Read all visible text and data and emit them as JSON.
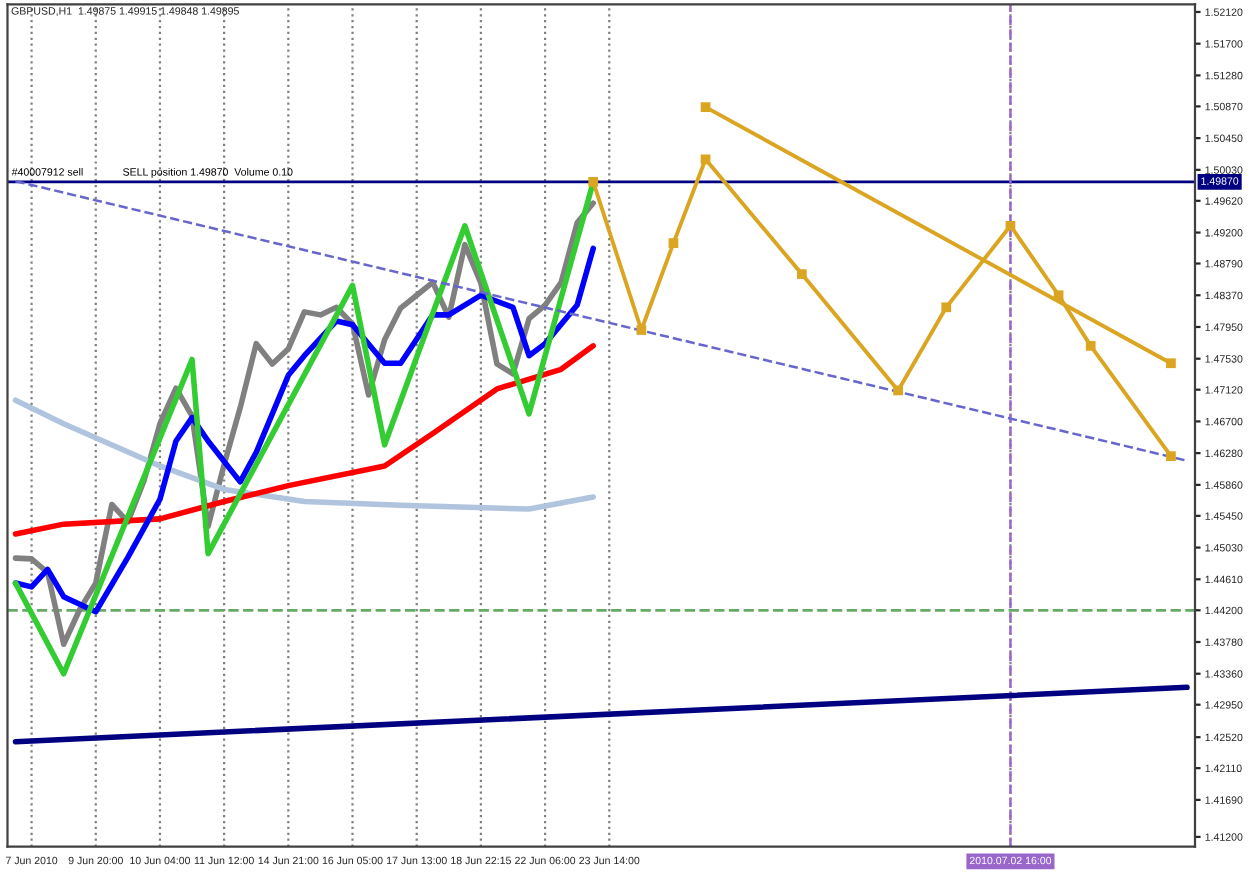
{
  "chart_data": {
    "type": "line",
    "title": "GBPUSD,H1  1.49875 1.49915 1.49848 1.49895",
    "categories": [
      null,
      "7 Jun 2010",
      null,
      null,
      null,
      "9 Jun 20:00",
      null,
      null,
      null,
      "10 Jun 04:00",
      null,
      null,
      null,
      "11 Jun 12:00",
      null,
      null,
      null,
      "14 Jun 21:00",
      null,
      null,
      null,
      "16 Jun 05:00",
      null,
      null,
      null,
      "17 Jun 13:00",
      null,
      null,
      null,
      "18 Jun 22:15",
      null,
      null,
      null,
      "22 Jun 06:00",
      null,
      null,
      null,
      "23 Jun 14:00",
      null,
      null,
      null,
      null,
      null,
      null,
      null,
      null,
      null,
      null,
      null,
      null,
      null,
      null,
      null,
      null,
      null,
      null,
      null,
      null,
      null,
      null,
      null,
      null,
      "2010.07.02 16:00",
      null,
      null,
      null,
      null,
      null,
      null,
      null,
      null,
      null,
      null,
      null
    ],
    "ylim": [
      1.4107,
      1.5222
    ],
    "yticks": [
      {
        "value": 1.5212,
        "label": "1.52120"
      },
      {
        "value": 1.517,
        "label": "1.51700"
      },
      {
        "value": 1.5128,
        "label": "1.51280"
      },
      {
        "value": 1.5087,
        "label": "1.50870"
      },
      {
        "value": 1.5045,
        "label": "1.50450"
      },
      {
        "value": 1.5003,
        "label": "1.50030"
      },
      {
        "value": 1.4962,
        "label": "1.49620"
      },
      {
        "value": 1.492,
        "label": "1.49200"
      },
      {
        "value": 1.4879,
        "label": "1.48790"
      },
      {
        "value": 1.4837,
        "label": "1.48370"
      },
      {
        "value": 1.4795,
        "label": "1.47950"
      },
      {
        "value": 1.4753,
        "label": "1.47530"
      },
      {
        "value": 1.4712,
        "label": "1.47120"
      },
      {
        "value": 1.467,
        "label": "1.46700"
      },
      {
        "value": 1.4628,
        "label": "1.46280"
      },
      {
        "value": 1.4586,
        "label": "1.45860"
      },
      {
        "value": 1.4545,
        "label": "1.45450"
      },
      {
        "value": 1.4503,
        "label": "1.45030"
      },
      {
        "value": 1.4461,
        "label": "1.44610"
      },
      {
        "value": 1.442,
        "label": "1.44200"
      },
      {
        "value": 1.4378,
        "label": "1.43780"
      },
      {
        "value": 1.4336,
        "label": "1.43360"
      },
      {
        "value": 1.4295,
        "label": "1.42950"
      },
      {
        "value": 1.4252,
        "label": "1.42520"
      },
      {
        "value": 1.4211,
        "label": "1.42110"
      },
      {
        "value": 1.4169,
        "label": "1.41690"
      },
      {
        "value": 1.412,
        "label": "1.41200"
      }
    ],
    "grid": "x",
    "legend": false,
    "series": [
      {
        "color": "#808080",
        "values": [
          1.4489,
          1.4488,
          1.447,
          1.4375,
          1.4421,
          1.4456,
          1.456,
          1.4537,
          1.4591,
          1.4667,
          1.4714,
          1.4677,
          1.4531,
          1.4613,
          1.4688,
          1.4773,
          1.4746,
          1.4766,
          1.4815,
          1.4811,
          1.4821,
          1.4799,
          1.4705,
          1.4778,
          1.482,
          1.4837,
          1.4854,
          1.4808,
          1.4904,
          1.4853,
          1.4746,
          1.4733,
          1.4806,
          1.4824,
          1.4854,
          1.4933,
          1.4959,
          null,
          null,
          null,
          null,
          null,
          null,
          null,
          null,
          null,
          null,
          null,
          null,
          null,
          null,
          null,
          null,
          null,
          null,
          null,
          null,
          null,
          null,
          null,
          null,
          null,
          null,
          null,
          null,
          null,
          null,
          null,
          null,
          null,
          null,
          null,
          null,
          null
        ]
      },
      {
        "color": "#b0c4de",
        "values": [
          1.4698,
          null,
          null,
          1.4667,
          null,
          null,
          null,
          null,
          null,
          1.4611,
          null,
          null,
          null,
          1.458,
          null,
          null,
          null,
          null,
          1.4564,
          null,
          null,
          null,
          null,
          null,
          1.4559,
          null,
          null,
          null,
          null,
          null,
          null,
          null,
          1.4554,
          null,
          null,
          null,
          1.457,
          null,
          null,
          null,
          null,
          null,
          null,
          null,
          null,
          null,
          null,
          null,
          null,
          null,
          null,
          null,
          null,
          null,
          null,
          null,
          null,
          null,
          null,
          null,
          null,
          null,
          null,
          null,
          null,
          null,
          null,
          null,
          null,
          null,
          null,
          null,
          null,
          null
        ]
      },
      {
        "color": "#ff0000",
        "values": [
          1.4521,
          null,
          null,
          1.4534,
          null,
          null,
          null,
          null,
          null,
          1.4541,
          null,
          null,
          null,
          1.4564,
          null,
          null,
          null,
          1.4585,
          null,
          null,
          null,
          null,
          null,
          1.4611,
          null,
          null,
          1.4654,
          null,
          null,
          null,
          1.4713,
          null,
          null,
          null,
          1.4739,
          null,
          1.477,
          null,
          null,
          null,
          null,
          null,
          null,
          null,
          null,
          null,
          null,
          null,
          null,
          null,
          null,
          null,
          null,
          null,
          null,
          null,
          null,
          null,
          null,
          null,
          null,
          null,
          null,
          null,
          null,
          null,
          null,
          null,
          null,
          null,
          null,
          null,
          null,
          null
        ]
      },
      {
        "color": "#0000ff",
        "values": [
          1.4456,
          1.4451,
          1.4474,
          1.4438,
          null,
          1.4418,
          null,
          1.449,
          null,
          1.4567,
          1.4644,
          1.4675,
          1.4644,
          null,
          1.459,
          1.4629,
          null,
          1.4731,
          1.4757,
          null,
          1.4803,
          1.4798,
          null,
          1.4747,
          1.4747,
          null,
          1.4811,
          1.4811,
          null,
          1.4837,
          null,
          1.4821,
          1.4757,
          1.4773,
          null,
          1.4824,
          1.4899,
          null,
          null,
          null,
          null,
          null,
          null,
          null,
          null,
          null,
          null,
          null,
          null,
          null,
          null,
          null,
          null,
          null,
          null,
          null,
          null,
          null,
          null,
          null,
          null,
          null,
          null,
          null,
          null,
          null,
          null,
          null,
          null,
          null,
          null,
          null,
          null,
          null
        ]
      },
      {
        "color": "#33cc33",
        "values": [
          1.4456,
          null,
          null,
          1.4336,
          null,
          null,
          null,
          null,
          null,
          null,
          null,
          1.4752,
          1.4495,
          null,
          null,
          null,
          null,
          null,
          null,
          null,
          null,
          1.485,
          null,
          1.4639,
          null,
          null,
          null,
          null,
          1.4929,
          null,
          null,
          null,
          1.468,
          null,
          null,
          null,
          1.4987,
          null,
          null,
          null,
          null,
          null,
          null,
          null,
          null,
          null,
          null,
          null,
          null,
          null,
          null,
          null,
          null,
          null,
          null,
          null,
          null,
          null,
          null,
          null,
          null,
          null,
          null,
          null,
          null,
          null,
          null,
          null,
          null,
          null,
          null,
          null,
          null,
          null
        ]
      },
      {
        "color": "#6666cc",
        "line_style": "dashed",
        "values": [
          1.4988,
          null,
          null,
          null,
          null,
          null,
          null,
          null,
          null,
          null,
          null,
          null,
          null,
          null,
          null,
          null,
          null,
          null,
          null,
          null,
          null,
          null,
          null,
          null,
          null,
          null,
          null,
          null,
          null,
          null,
          null,
          null,
          null,
          null,
          null,
          null,
          null,
          null,
          null,
          null,
          null,
          null,
          null,
          null,
          null,
          null,
          null,
          null,
          null,
          null,
          null,
          null,
          null,
          null,
          null,
          null,
          null,
          null,
          null,
          null,
          null,
          null,
          null,
          null,
          null,
          null,
          null,
          null,
          null,
          null,
          null,
          null,
          null,
          1.4618
        ]
      },
      {
        "color": "#000080",
        "values": [
          1.4246,
          null,
          null,
          null,
          null,
          null,
          null,
          null,
          null,
          null,
          null,
          null,
          null,
          null,
          null,
          null,
          null,
          null,
          null,
          null,
          null,
          null,
          null,
          null,
          null,
          null,
          null,
          null,
          null,
          null,
          null,
          null,
          null,
          null,
          null,
          null,
          null,
          null,
          null,
          null,
          null,
          null,
          null,
          null,
          null,
          null,
          null,
          null,
          null,
          null,
          null,
          null,
          null,
          null,
          null,
          null,
          null,
          null,
          null,
          null,
          null,
          null,
          null,
          null,
          null,
          null,
          null,
          null,
          null,
          null,
          null,
          null,
          null,
          1.4318
        ]
      },
      {
        "color": "#daa520",
        "marker": "square",
        "values": [
          null,
          null,
          null,
          null,
          null,
          null,
          null,
          null,
          null,
          null,
          null,
          null,
          null,
          null,
          null,
          null,
          null,
          null,
          null,
          null,
          null,
          null,
          null,
          null,
          null,
          null,
          null,
          null,
          null,
          null,
          null,
          null,
          null,
          null,
          null,
          null,
          1.4987,
          null,
          null,
          1.4791,
          null,
          1.4906,
          null,
          1.5017,
          null,
          null,
          null,
          null,
          null,
          1.4865,
          null,
          null,
          null,
          null,
          null,
          1.4711,
          null,
          null,
          1.4821,
          null,
          null,
          null,
          1.4929,
          null,
          null,
          1.4837,
          null,
          1.477,
          null,
          null,
          null,
          null,
          1.4624,
          null
        ]
      },
      {
        "color": "#daa520",
        "marker": "square",
        "values": [
          null,
          null,
          null,
          null,
          null,
          null,
          null,
          null,
          null,
          null,
          null,
          null,
          null,
          null,
          null,
          null,
          null,
          null,
          null,
          null,
          null,
          null,
          null,
          null,
          null,
          null,
          null,
          null,
          null,
          null,
          null,
          null,
          null,
          null,
          null,
          null,
          null,
          null,
          null,
          null,
          null,
          null,
          null,
          1.5086,
          null,
          null,
          null,
          null,
          null,
          null,
          null,
          null,
          null,
          null,
          null,
          null,
          null,
          null,
          null,
          null,
          null,
          null,
          null,
          null,
          null,
          null,
          null,
          null,
          null,
          null,
          null,
          null,
          1.4747,
          null
        ]
      }
    ],
    "ref_lines": [
      {
        "axis": "y",
        "value": 1.4987,
        "label": "1.49870",
        "color": "#000080"
      },
      {
        "axis": "y",
        "value": 1.442,
        "color": "#66aa66",
        "line_style": "dashed"
      },
      {
        "axis": "x",
        "value": "2010.07.02 16:00",
        "color": "#9966cc",
        "line_style": "dashed"
      }
    ],
    "annotations": [
      "#40007912 sell",
      "SELL position 1.49870  Volume 0.10"
    ]
  }
}
